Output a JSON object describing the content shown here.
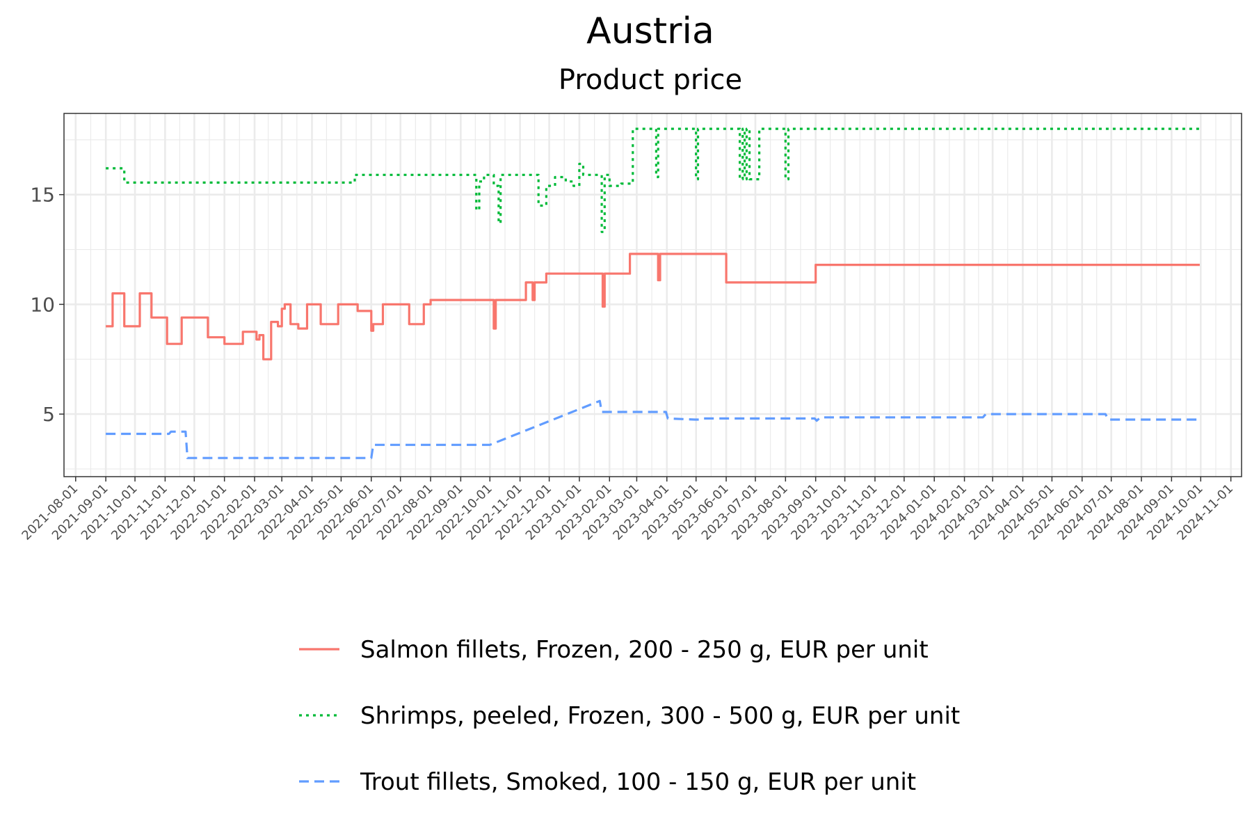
{
  "chart_data": {
    "type": "line",
    "title": "Austria",
    "subtitle": "Product price",
    "xlabel": "",
    "ylabel": "",
    "x_axis_type": "date",
    "xlim": [
      "2021-07-20",
      "2024-11-12"
    ],
    "ylim": [
      2.15,
      18.7
    ],
    "y_ticks": [
      5,
      10,
      15
    ],
    "x_ticks": [
      "2021-08-01",
      "2021-09-01",
      "2021-10-01",
      "2021-11-01",
      "2021-12-01",
      "2022-01-01",
      "2022-02-01",
      "2022-03-01",
      "2022-04-01",
      "2022-05-01",
      "2022-06-01",
      "2022-07-01",
      "2022-08-01",
      "2022-09-01",
      "2022-10-01",
      "2022-11-01",
      "2022-12-01",
      "2023-01-01",
      "2023-02-01",
      "2023-03-01",
      "2023-04-01",
      "2023-05-01",
      "2023-06-01",
      "2023-07-01",
      "2023-08-01",
      "2023-09-01",
      "2023-10-01",
      "2023-11-01",
      "2023-12-01",
      "2024-01-01",
      "2024-02-01",
      "2024-03-01",
      "2024-04-01",
      "2024-05-01",
      "2024-06-01",
      "2024-07-01",
      "2024-08-01",
      "2024-09-01",
      "2024-10-01",
      "2024-11-01"
    ],
    "grid": true,
    "legend_position": "bottom",
    "series": [
      {
        "name": "Salmon fillets, Frozen, 200 - 250 g, EUR per unit",
        "color": "#f8766d",
        "dash": "solid",
        "step": true,
        "points": [
          [
            "2021-09-01",
            9.0
          ],
          [
            "2021-09-08",
            10.5
          ],
          [
            "2021-09-20",
            9.0
          ],
          [
            "2021-10-06",
            10.5
          ],
          [
            "2021-10-18",
            9.4
          ],
          [
            "2021-11-03",
            8.2
          ],
          [
            "2021-11-18",
            9.4
          ],
          [
            "2021-12-15",
            8.5
          ],
          [
            "2022-01-01",
            8.2
          ],
          [
            "2022-01-20",
            8.75
          ],
          [
            "2022-02-03",
            8.4
          ],
          [
            "2022-02-06",
            8.6
          ],
          [
            "2022-02-10",
            7.5
          ],
          [
            "2022-02-18",
            9.2
          ],
          [
            "2022-02-25",
            9.0
          ],
          [
            "2022-03-01",
            9.8
          ],
          [
            "2022-03-04",
            10.0
          ],
          [
            "2022-03-10",
            9.1
          ],
          [
            "2022-03-18",
            8.9
          ],
          [
            "2022-03-27",
            10.0
          ],
          [
            "2022-04-10",
            9.1
          ],
          [
            "2022-04-28",
            10.0
          ],
          [
            "2022-05-18",
            9.7
          ],
          [
            "2022-06-01",
            8.8
          ],
          [
            "2022-06-03",
            9.1
          ],
          [
            "2022-06-13",
            10.0
          ],
          [
            "2022-07-10",
            9.1
          ],
          [
            "2022-07-25",
            10.0
          ],
          [
            "2022-08-01",
            10.2
          ],
          [
            "2022-10-05",
            8.9
          ],
          [
            "2022-10-07",
            10.2
          ],
          [
            "2022-11-07",
            11.0
          ],
          [
            "2022-11-14",
            10.2
          ],
          [
            "2022-11-16",
            11.0
          ],
          [
            "2022-11-28",
            11.4
          ],
          [
            "2023-01-25",
            9.9
          ],
          [
            "2023-01-27",
            11.4
          ],
          [
            "2023-02-22",
            12.3
          ],
          [
            "2023-03-23",
            11.1
          ],
          [
            "2023-03-25",
            12.3
          ],
          [
            "2023-06-01",
            11.0
          ],
          [
            "2023-09-01",
            11.8
          ],
          [
            "2024-09-30",
            11.8
          ]
        ]
      },
      {
        "name": "Shrimps, peeled, Frozen, 300 - 500 g, EUR per unit",
        "color": "#00ba38",
        "dash": "dotted",
        "step": true,
        "points": [
          [
            "2021-09-01",
            16.2
          ],
          [
            "2021-09-20",
            15.55
          ],
          [
            "2022-05-15",
            15.9
          ],
          [
            "2022-09-17",
            14.3
          ],
          [
            "2022-09-20",
            15.6
          ],
          [
            "2022-09-25",
            15.9
          ],
          [
            "2022-10-05",
            15.4
          ],
          [
            "2022-10-10",
            13.7
          ],
          [
            "2022-10-12",
            15.9
          ],
          [
            "2022-11-20",
            14.5
          ],
          [
            "2022-11-28",
            15.4
          ],
          [
            "2022-12-07",
            15.8
          ],
          [
            "2022-12-18",
            15.6
          ],
          [
            "2022-12-26",
            15.4
          ],
          [
            "2023-01-01",
            16.4
          ],
          [
            "2023-01-05",
            15.9
          ],
          [
            "2023-01-24",
            13.3
          ],
          [
            "2023-01-27",
            15.9
          ],
          [
            "2023-02-01",
            15.4
          ],
          [
            "2023-02-13",
            15.5
          ],
          [
            "2023-02-25",
            18.0
          ],
          [
            "2023-03-21",
            15.8
          ],
          [
            "2023-03-23",
            18.0
          ],
          [
            "2023-05-01",
            15.7
          ],
          [
            "2023-05-03",
            18.0
          ],
          [
            "2023-06-15",
            15.7
          ],
          [
            "2023-06-18",
            18.0
          ],
          [
            "2023-06-20",
            15.7
          ],
          [
            "2023-06-22",
            18.0
          ],
          [
            "2023-06-25",
            15.7
          ],
          [
            "2023-07-05",
            18.0
          ],
          [
            "2023-08-01",
            15.7
          ],
          [
            "2023-08-04",
            18.0
          ],
          [
            "2024-09-30",
            18.0
          ]
        ]
      },
      {
        "name": "Trout fillets, Smoked, 100 - 150 g, EUR per unit",
        "color": "#619cff",
        "dash": "dashed",
        "step": false,
        "points": [
          [
            "2021-09-01",
            4.1
          ],
          [
            "2021-11-05",
            4.1
          ],
          [
            "2021-11-07",
            4.2
          ],
          [
            "2021-11-22",
            4.2
          ],
          [
            "2021-11-24",
            3.0
          ],
          [
            "2022-06-01",
            3.0
          ],
          [
            "2022-06-03",
            3.6
          ],
          [
            "2022-10-01",
            3.6
          ],
          [
            "2023-01-22",
            5.6
          ],
          [
            "2023-01-24",
            5.1
          ],
          [
            "2023-03-31",
            5.1
          ],
          [
            "2023-04-02",
            4.8
          ],
          [
            "2023-04-30",
            4.75
          ],
          [
            "2023-05-04",
            4.75
          ],
          [
            "2023-05-06",
            4.8
          ],
          [
            "2023-08-31",
            4.8
          ],
          [
            "2023-09-02",
            4.7
          ],
          [
            "2023-09-06",
            4.85
          ],
          [
            "2024-02-20",
            4.85
          ],
          [
            "2024-02-23",
            5.0
          ],
          [
            "2024-06-25",
            5.0
          ],
          [
            "2024-06-28",
            4.75
          ],
          [
            "2024-09-30",
            4.75
          ]
        ]
      }
    ]
  }
}
